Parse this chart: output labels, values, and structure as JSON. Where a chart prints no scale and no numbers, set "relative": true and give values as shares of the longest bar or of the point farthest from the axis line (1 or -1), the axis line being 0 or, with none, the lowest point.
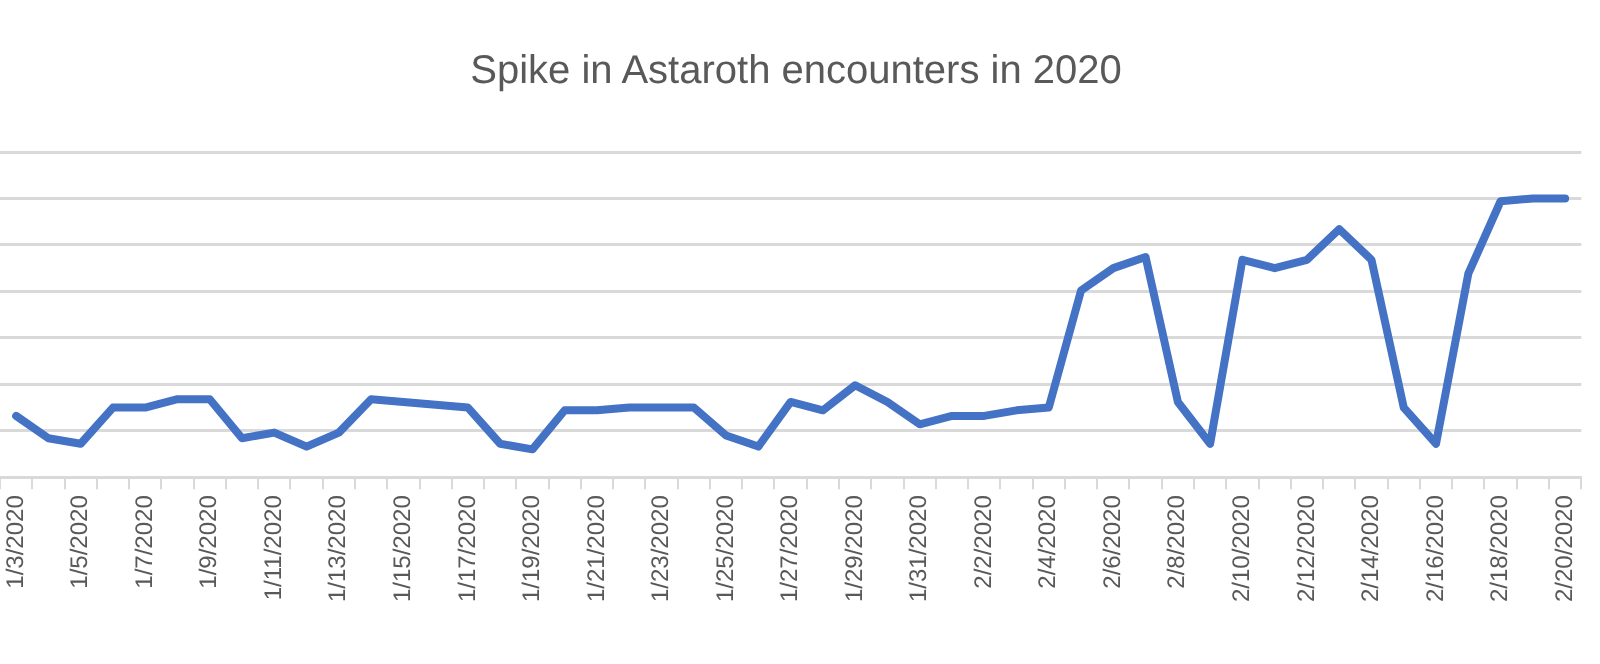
{
  "chart_data": {
    "type": "line",
    "title": "Spike in Astaroth encounters in 2020",
    "relative": true,
    "grid": "y",
    "legend": false,
    "marker": "none",
    "line_style": "solid",
    "categories": [
      "1/3/2020",
      null,
      "1/5/2020",
      null,
      "1/7/2020",
      null,
      "1/9/2020",
      null,
      "1/11/2020",
      null,
      "1/13/2020",
      null,
      "1/15/2020",
      null,
      "1/17/2020",
      null,
      "1/19/2020",
      null,
      "1/21/2020",
      null,
      "1/23/2020",
      null,
      "1/25/2020",
      null,
      "1/27/2020",
      null,
      "1/29/2020",
      null,
      "1/31/2020",
      null,
      "2/2/2020",
      null,
      "2/4/2020",
      null,
      "2/6/2020",
      null,
      "2/8/2020",
      null,
      "2/10/2020",
      null,
      "2/12/2020",
      null,
      "2/14/2020",
      null,
      "2/16/2020",
      null,
      "2/18/2020",
      null,
      "2/20/2020"
    ],
    "series": [
      {
        "color": "#4472c4",
        "values": [
          0.22,
          0.14,
          0.12,
          0.25,
          0.25,
          0.28,
          0.28,
          0.14,
          0.16,
          0.11,
          0.16,
          0.28,
          0.27,
          0.26,
          0.25,
          0.12,
          0.1,
          0.24,
          0.24,
          0.25,
          0.25,
          0.25,
          0.15,
          0.11,
          0.27,
          0.24,
          0.33,
          0.27,
          0.19,
          0.22,
          0.22,
          0.24,
          0.25,
          0.67,
          0.75,
          0.79,
          0.27,
          0.12,
          0.78,
          0.75,
          0.78,
          0.89,
          0.78,
          0.25,
          0.12,
          0.73,
          0.99,
          1,
          1
        ]
      }
    ]
  }
}
